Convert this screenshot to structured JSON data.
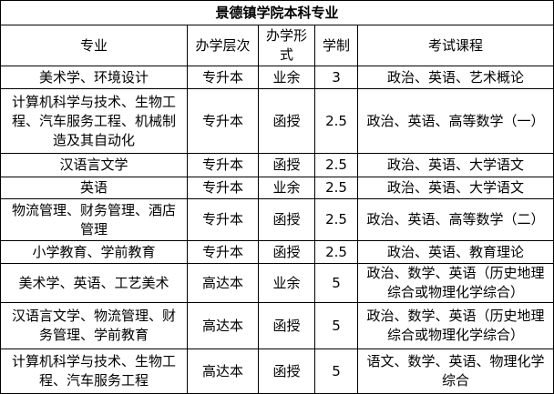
{
  "title": "景德镇学院本科专业",
  "headers": [
    "专业",
    "办学层次",
    "办学形\n式",
    "学制",
    "考试课程"
  ],
  "rows": [
    [
      "美术学、环境设计",
      "专升本",
      "业余",
      "3",
      "政治、英语、艺术概论"
    ],
    [
      "计算机科学与技术、生物工\n程、汽车服务工程、机械制\n造及其自动化",
      "专升本",
      "函授",
      "2.5",
      "政治、英语、高等数学（一）"
    ],
    [
      "汉语言文学",
      "专升本",
      "函授",
      "2.5",
      "政治、英语、大学语文"
    ],
    [
      "英语",
      "专升本",
      "业余",
      "2.5",
      "政治、英语、大学语文"
    ],
    [
      "物流管理、财务管理、酒店\n管理",
      "专升本",
      "函授",
      "2.5",
      "政治、英语、高等数学（二）"
    ],
    [
      "小学教育、学前教育",
      "专升本",
      "函授",
      "2.5",
      "政治、英语、教育理论"
    ],
    [
      "美术学、英语、工艺美术",
      "高达本",
      "业余",
      "5",
      "政治、数学、英语（历史地理\n综合或物理化学综合）"
    ],
    [
      "汉语言文学、物流管理、财\n务管理、学前教育",
      "高达本",
      "函授",
      "5",
      "政治、数学、英语（历史地理\n综合或物理化学综合）"
    ],
    [
      "计算机科学与技术、生物工\n程、汽车服务工程",
      "高达本",
      "函授",
      "5",
      "语文、数学、英语、物理化学\n综合"
    ]
  ]
}
